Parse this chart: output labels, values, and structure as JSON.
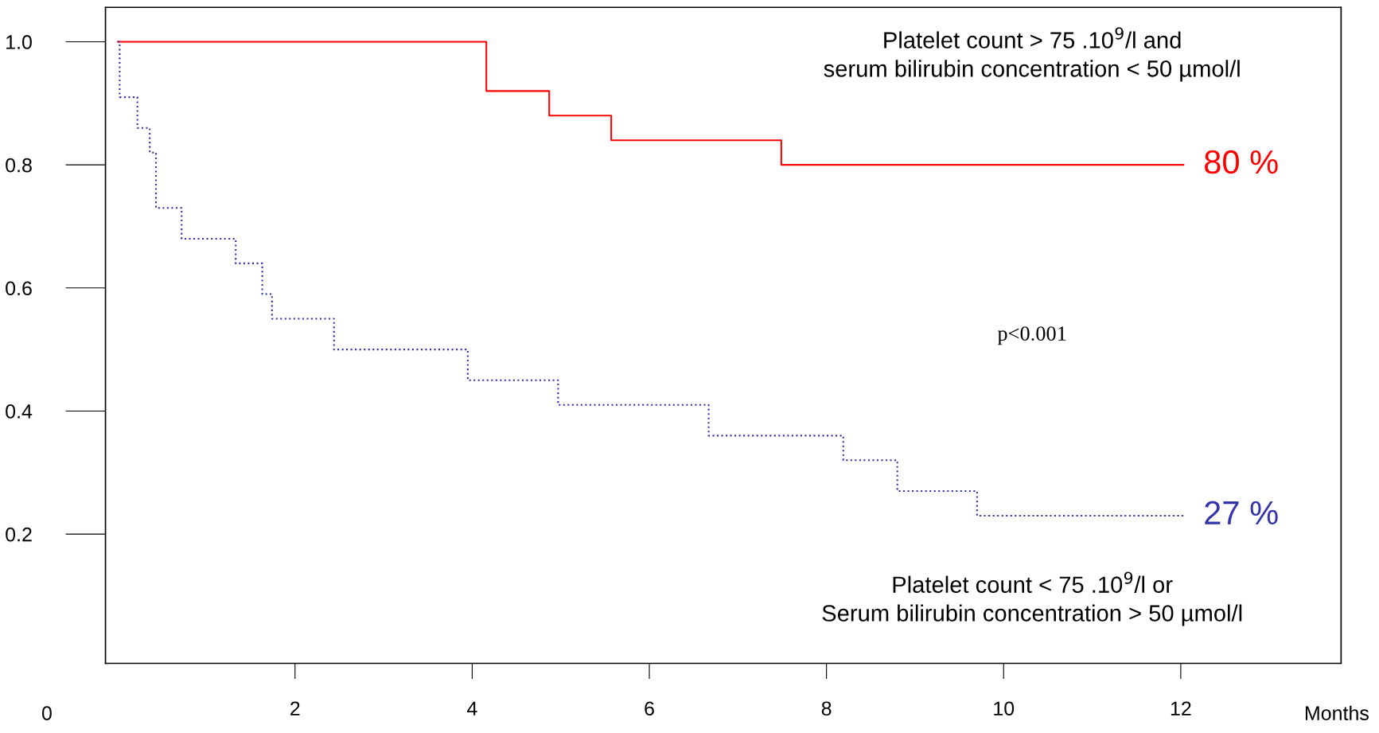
{
  "chart_data": {
    "type": "step",
    "xlabel": "Months",
    "xlim": [
      -0.14,
      13.81
    ],
    "ylim": [
      -0.01,
      1.056
    ],
    "xticks": [
      2,
      4,
      6,
      8,
      10,
      12
    ],
    "yticks": [
      {
        "value": 0.2,
        "label": "0.2"
      },
      {
        "value": 0.4,
        "label": "0.4"
      },
      {
        "value": 0.6,
        "label": "0.6"
      },
      {
        "value": 0.8,
        "label": "0.8"
      },
      {
        "value": 1.0,
        "label": "1.0"
      }
    ],
    "grid": false,
    "legend": false,
    "series": [
      {
        "color": "#ff0000",
        "line_style": "solid",
        "x": [
          0,
          4.16,
          4.87,
          5.57,
          7.49,
          12.03
        ],
        "values": [
          1.0,
          0.92,
          0.88,
          0.84,
          0.8,
          0.8
        ]
      },
      {
        "color": "#3333aa",
        "line_style": "dotted",
        "x": [
          0,
          0.02,
          0.22,
          0.36,
          0.43,
          0.72,
          1.33,
          1.63,
          1.74,
          2.44,
          3.95,
          4.97,
          6.67,
          8.19,
          8.8,
          9.7,
          12.03
        ],
        "values": [
          1.0,
          0.91,
          0.86,
          0.82,
          0.73,
          0.68,
          0.64,
          0.59,
          0.55,
          0.5,
          0.45,
          0.41,
          0.36,
          0.32,
          0.27,
          0.23,
          0.23
        ]
      }
    ],
    "annotations": [
      "Platelet count > 75 .10$^{9}$/l and\nserum bilirubin concentration < 50 µmol/l",
      "Platelet count < 75 .10$^{9}$/l or\nSerum bilirubin concentration > 50 µmol/l",
      "p<0.001",
      "0",
      {
        "text": "80 %",
        "x": 12.03,
        "y": 0.8
      },
      {
        "text": "27 %",
        "x": 12.03,
        "y": 0.23
      }
    ]
  }
}
